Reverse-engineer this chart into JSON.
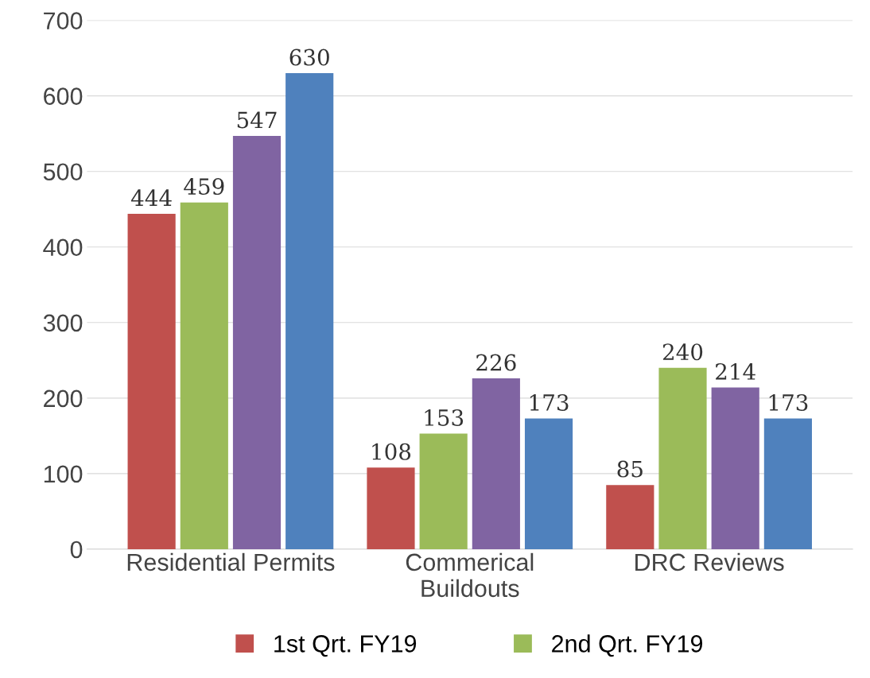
{
  "chart_data": {
    "type": "bar",
    "categories": [
      "Residential Permits",
      "Commerical\nBuildouts",
      "DRC Reviews"
    ],
    "series": [
      {
        "name": "1st Qrt. FY19",
        "color": "#c0504d",
        "values": [
          444,
          108,
          85
        ]
      },
      {
        "name": "2nd Qrt. FY19",
        "color": "#9bbb59",
        "values": [
          459,
          153,
          240
        ]
      },
      {
        "color": "#8064a2",
        "values": [
          547,
          226,
          214
        ]
      },
      {
        "color": "#4f81bd",
        "values": [
          630,
          173,
          173
        ]
      }
    ],
    "ylim": [
      0,
      700
    ],
    "yticks": [
      0,
      100,
      200,
      300,
      400,
      500,
      600,
      700
    ],
    "grid": "y",
    "legend": "bottom",
    "data_labels": true
  }
}
